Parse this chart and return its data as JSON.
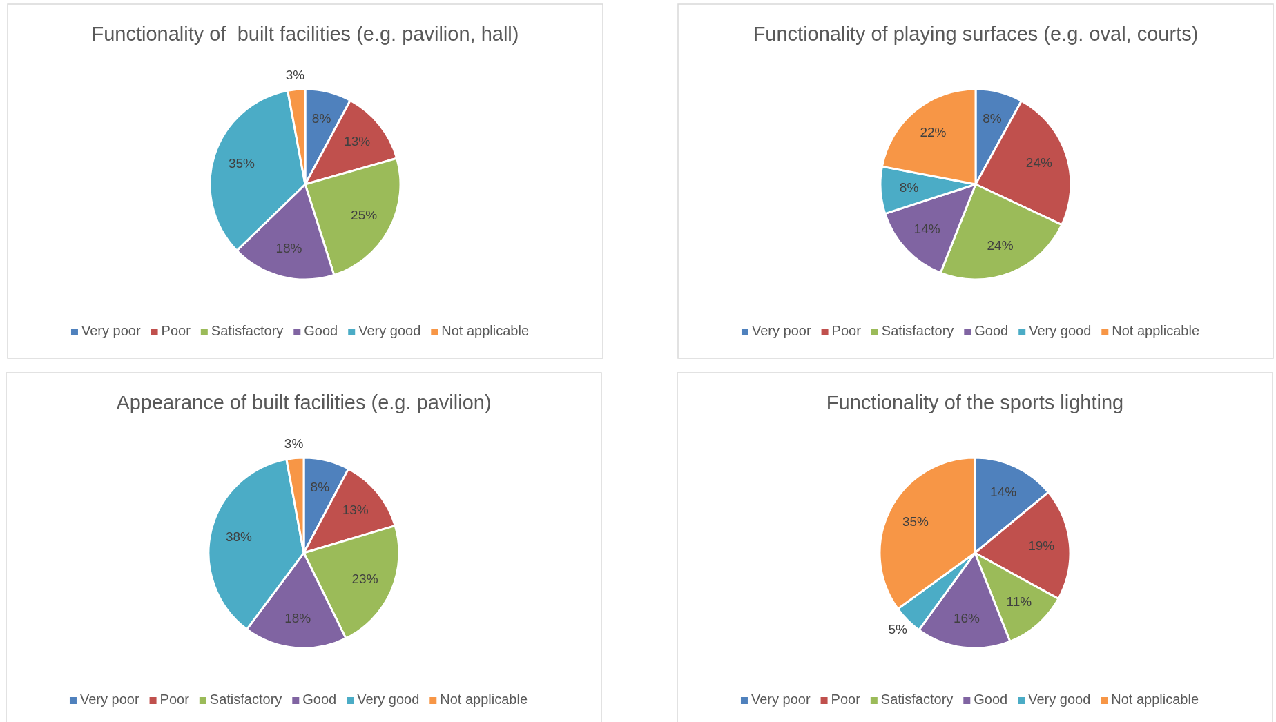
{
  "chart_data": [
    {
      "type": "pie",
      "title": "Functionality of  built facilities (e.g. pavilion, hall)",
      "categories": [
        "Very poor",
        "Poor",
        "Satisfactory",
        "Good",
        "Very good",
        "Not applicable"
      ],
      "values": [
        8,
        13,
        25,
        18,
        35,
        3
      ],
      "value_labels": [
        "8%",
        "13%",
        "25%",
        "18%",
        "35%",
        "3%"
      ],
      "colors": [
        "#4f81bd",
        "#c0504d",
        "#9bbb59",
        "#8064a2",
        "#4bacc6",
        "#f79646"
      ],
      "legend": "bottom"
    },
    {
      "type": "pie",
      "title": "Functionality of playing surfaces (e.g. oval, courts)",
      "categories": [
        "Very poor",
        "Poor",
        "Satisfactory",
        "Good",
        "Very good",
        "Not applicable"
      ],
      "values": [
        8,
        24,
        24,
        14,
        8,
        22
      ],
      "value_labels": [
        "8%",
        "24%",
        "24%",
        "14%",
        "8%",
        "22%"
      ],
      "colors": [
        "#4f81bd",
        "#c0504d",
        "#9bbb59",
        "#8064a2",
        "#4bacc6",
        "#f79646"
      ],
      "legend": "bottom"
    },
    {
      "type": "pie",
      "title": "Appearance of built facilities (e.g. pavilion)",
      "categories": [
        "Very poor",
        "Poor",
        "Satisfactory",
        "Good",
        "Very good",
        "Not applicable"
      ],
      "values": [
        8,
        13,
        23,
        18,
        38,
        3
      ],
      "value_labels": [
        "8%",
        "13%",
        "23%",
        "18%",
        "38%",
        "3%"
      ],
      "colors": [
        "#4f81bd",
        "#c0504d",
        "#9bbb59",
        "#8064a2",
        "#4bacc6",
        "#f79646"
      ],
      "legend": "bottom"
    },
    {
      "type": "pie",
      "title": "Functionality of the sports lighting",
      "categories": [
        "Very poor",
        "Poor",
        "Satisfactory",
        "Good",
        "Very good",
        "Not applicable"
      ],
      "values": [
        14,
        19,
        11,
        16,
        5,
        35
      ],
      "value_labels": [
        "14%",
        "19%",
        "11%",
        "16%",
        "5%",
        "35%"
      ],
      "colors": [
        "#4f81bd",
        "#c0504d",
        "#9bbb59",
        "#8064a2",
        "#4bacc6",
        "#f79646"
      ],
      "legend": "bottom"
    }
  ]
}
